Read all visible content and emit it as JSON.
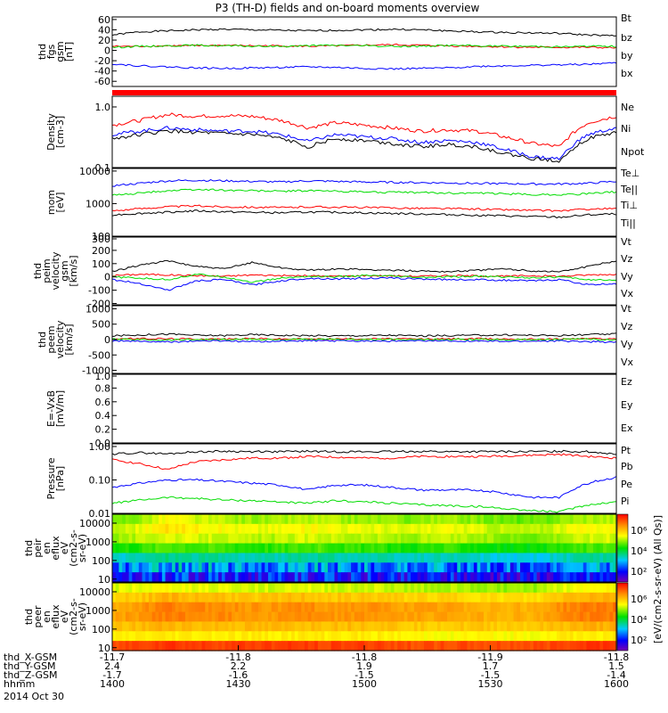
{
  "title": "P3 (TH-D) fields and on-board moments overview",
  "colors": {
    "black": "#000000",
    "red": "#ff0000",
    "green": "#00dd00",
    "blue": "#0000ff"
  },
  "chart_data": [
    {
      "type": "line",
      "ylabel": [
        "thd",
        "fgs",
        "gsm",
        "[nT]"
      ],
      "yticks": [
        "60",
        "40",
        "20",
        "0",
        "-20",
        "-40",
        "-60"
      ],
      "ylim": [
        -70,
        65
      ],
      "legend": [
        "Bt",
        "bz",
        "by",
        "bx"
      ],
      "series": [
        {
          "name": "Bt",
          "color": "black",
          "values": [
            30,
            36,
            38,
            40,
            41,
            40,
            39,
            38,
            39,
            40,
            41,
            40,
            38,
            36,
            35,
            34,
            33,
            30,
            28
          ]
        },
        {
          "name": "bz",
          "color": "red",
          "values": [
            8,
            8,
            9,
            9,
            10,
            9,
            9,
            8,
            9,
            10,
            11,
            10,
            9,
            8,
            7,
            6,
            6,
            6,
            5
          ]
        },
        {
          "name": "by",
          "color": "green",
          "values": [
            6,
            8,
            9,
            10,
            9,
            8,
            8,
            9,
            10,
            9,
            8,
            8,
            10,
            9,
            8,
            8,
            7,
            8,
            8
          ]
        },
        {
          "name": "bx",
          "color": "blue",
          "values": [
            -26,
            -30,
            -32,
            -34,
            -35,
            -34,
            -33,
            -32,
            -33,
            -35,
            -36,
            -35,
            -34,
            -31,
            -30,
            -29,
            -28,
            -27,
            -24
          ]
        }
      ]
    },
    {
      "type": "line",
      "ylabel": [
        "Density",
        "[cm-3]"
      ],
      "yscale": "log",
      "yticks": [
        "1.0",
        "0.1"
      ],
      "ylim": [
        0.1,
        1.5
      ],
      "legend": [
        "Ne",
        "Ni",
        "Npot"
      ],
      "series": [
        {
          "name": "Ne",
          "color": "red",
          "values": [
            0.5,
            0.6,
            0.75,
            0.7,
            0.72,
            0.7,
            0.6,
            0.45,
            0.55,
            0.5,
            0.45,
            0.4,
            0.42,
            0.4,
            0.32,
            0.25,
            0.22,
            0.55,
            0.7
          ]
        },
        {
          "name": "Ni",
          "color": "black",
          "values": [
            0.3,
            0.35,
            0.4,
            0.38,
            0.36,
            0.35,
            0.3,
            0.22,
            0.3,
            0.28,
            0.25,
            0.22,
            0.24,
            0.22,
            0.17,
            0.14,
            0.13,
            0.3,
            0.38
          ]
        },
        {
          "name": "Npot",
          "color": "blue",
          "values": [
            0.35,
            0.4,
            0.45,
            0.42,
            0.4,
            0.4,
            0.35,
            0.27,
            0.35,
            0.32,
            0.3,
            0.26,
            0.28,
            0.26,
            0.2,
            0.15,
            0.14,
            0.35,
            0.45
          ]
        }
      ]
    },
    {
      "type": "line",
      "ylabel": [
        "mom",
        "[eV]"
      ],
      "yscale": "log",
      "yticks": [
        "10000",
        "1000",
        "100"
      ],
      "ylim": [
        100,
        12000
      ],
      "legend": [
        "Te⊥",
        "Te||",
        "Ti⊥",
        "Ti||"
      ],
      "series": [
        {
          "name": "Te⊥",
          "color": "red",
          "values": [
            600,
            700,
            800,
            850,
            800,
            780,
            750,
            800,
            780,
            760,
            740,
            720,
            700,
            680,
            650,
            620,
            600,
            680,
            700
          ]
        },
        {
          "name": "Te||",
          "color": "black",
          "values": [
            450,
            500,
            550,
            600,
            560,
            540,
            520,
            550,
            540,
            520,
            500,
            480,
            460,
            440,
            420,
            400,
            380,
            450,
            480
          ]
        },
        {
          "name": "Ti⊥",
          "color": "blue",
          "values": [
            3500,
            4200,
            5000,
            5200,
            5000,
            4800,
            4600,
            5000,
            4800,
            4600,
            4500,
            4400,
            4300,
            4200,
            4100,
            4000,
            4000,
            4200,
            4800
          ]
        },
        {
          "name": "Ti||",
          "color": "green",
          "values": [
            1800,
            2100,
            2500,
            2700,
            2600,
            2500,
            2400,
            2500,
            2400,
            2300,
            2200,
            2200,
            2100,
            2100,
            2000,
            1900,
            1900,
            2000,
            2300
          ]
        }
      ]
    },
    {
      "type": "line",
      "ylabel": [
        "thd",
        "peim",
        "velocity",
        "gsm",
        "[km/s]"
      ],
      "yticks": [
        "300",
        "200",
        "100",
        "0",
        "-100",
        "-200"
      ],
      "ylim": [
        -210,
        300
      ],
      "legend": [
        "Vt",
        "Vz",
        "Vy",
        "Vx"
      ],
      "series": [
        {
          "name": "Vt",
          "color": "black",
          "values": [
            40,
            90,
            120,
            80,
            60,
            110,
            70,
            50,
            60,
            55,
            50,
            45,
            40,
            50,
            60,
            45,
            40,
            80,
            120
          ]
        },
        {
          "name": "Vz",
          "color": "red",
          "values": [
            10,
            20,
            15,
            10,
            5,
            15,
            10,
            8,
            5,
            10,
            8,
            5,
            10,
            8,
            5,
            10,
            5,
            15,
            20
          ]
        },
        {
          "name": "Vy",
          "color": "green",
          "values": [
            0,
            -10,
            -20,
            20,
            0,
            -40,
            -10,
            5,
            0,
            10,
            5,
            -5,
            0,
            5,
            0,
            -5,
            0,
            -20,
            -30
          ]
        },
        {
          "name": "Vx",
          "color": "blue",
          "values": [
            -20,
            -50,
            -100,
            -30,
            -20,
            -60,
            -30,
            -10,
            -15,
            -10,
            -10,
            -15,
            -20,
            -20,
            -25,
            -30,
            -20,
            -60,
            -50
          ]
        }
      ]
    },
    {
      "type": "line",
      "ylabel": [
        "thd",
        "peem",
        "velocity",
        "[km/s]"
      ],
      "yticks": [
        "1000",
        "500",
        "0",
        "-500",
        "-1000"
      ],
      "ylim": [
        -1100,
        1100
      ],
      "legend": [
        "Vt",
        "Vz",
        "Vy",
        "Vx"
      ],
      "series": [
        {
          "name": "Vt",
          "color": "black",
          "values": [
            120,
            150,
            180,
            140,
            130,
            160,
            140,
            130,
            120,
            130,
            140,
            120,
            130,
            140,
            150,
            140,
            130,
            160,
            180
          ]
        },
        {
          "name": "Vz",
          "color": "red",
          "values": [
            20,
            30,
            25,
            20,
            15,
            30,
            20,
            15,
            20,
            25,
            20,
            15,
            20,
            25,
            20,
            15,
            20,
            30,
            25
          ]
        },
        {
          "name": "Vy",
          "color": "green",
          "values": [
            10,
            0,
            -10,
            5,
            0,
            10,
            0,
            5,
            0,
            5,
            0,
            -5,
            0,
            5,
            0,
            0,
            5,
            10,
            0
          ]
        },
        {
          "name": "Vx",
          "color": "blue",
          "values": [
            -40,
            -60,
            -80,
            -50,
            -40,
            -70,
            -50,
            -40,
            -45,
            -40,
            -50,
            -45,
            -40,
            -50,
            -60,
            -50,
            -45,
            -70,
            -80
          ]
        }
      ]
    },
    {
      "type": "line",
      "ylabel": [
        "E=-VxB",
        "[mV/m]"
      ],
      "yticks": [
        "1.0",
        "0.8",
        "0.6",
        "0.4",
        "0.2",
        "0.0"
      ],
      "ylim": [
        0,
        1
      ],
      "legend": [
        "Ez",
        "Ey",
        "Ex"
      ],
      "series": []
    },
    {
      "type": "line",
      "ylabel": [
        "Pressure",
        "[nPa]"
      ],
      "yscale": "log",
      "yticks": [
        "1.00",
        "0.10",
        "0.01"
      ],
      "ylim": [
        0.01,
        1.2
      ],
      "legend": [
        "Pt",
        "Pb",
        "Pe",
        "Pi"
      ],
      "series": [
        {
          "name": "Pt",
          "color": "black",
          "values": [
            0.6,
            0.65,
            0.6,
            0.7,
            0.72,
            0.7,
            0.7,
            0.72,
            0.7,
            0.7,
            0.7,
            0.72,
            0.7,
            0.7,
            0.7,
            0.7,
            0.72,
            0.7,
            0.6
          ]
        },
        {
          "name": "Pb",
          "color": "red",
          "values": [
            0.4,
            0.3,
            0.2,
            0.35,
            0.4,
            0.45,
            0.45,
            0.5,
            0.48,
            0.45,
            0.45,
            0.5,
            0.5,
            0.5,
            0.52,
            0.55,
            0.58,
            0.5,
            0.45
          ]
        },
        {
          "name": "Pe",
          "color": "green",
          "values": [
            0.02,
            0.025,
            0.03,
            0.028,
            0.025,
            0.024,
            0.022,
            0.02,
            0.024,
            0.022,
            0.02,
            0.018,
            0.017,
            0.016,
            0.014,
            0.012,
            0.011,
            0.018,
            0.022
          ]
        },
        {
          "name": "Pi",
          "color": "blue",
          "values": [
            0.06,
            0.08,
            0.1,
            0.1,
            0.09,
            0.08,
            0.07,
            0.05,
            0.07,
            0.07,
            0.06,
            0.05,
            0.05,
            0.05,
            0.04,
            0.03,
            0.03,
            0.08,
            0.12
          ]
        }
      ]
    },
    {
      "type": "heatmap",
      "ylabel": [
        "thd",
        "peir",
        "en",
        "eflux",
        "eV",
        "(cm2-s-",
        "sr-eV)"
      ],
      "yscale": "log",
      "yticks": [
        "10000",
        "1000",
        "100",
        "10"
      ],
      "ylim": [
        7,
        30000
      ],
      "colorbar_ticks": [
        "10⁶",
        "10⁴",
        "10²"
      ],
      "rows": [
        [
          4.6,
          4.8,
          5.2,
          5.0,
          4.9,
          4.8,
          4.8,
          4.9,
          4.9,
          4.8,
          4.8,
          4.7,
          4.8,
          4.8,
          4.7,
          4.6,
          4.6,
          4.8,
          4.9
        ],
        [
          4.9,
          5.1,
          5.4,
          5.3,
          5.2,
          5.1,
          5.1,
          5.2,
          5.2,
          5.1,
          5.1,
          5.0,
          5.1,
          5.1,
          5.0,
          4.9,
          4.9,
          5.1,
          5.2
        ],
        [
          4.8,
          4.9,
          5.1,
          5.0,
          5.0,
          4.9,
          4.9,
          5.0,
          5.0,
          4.9,
          4.9,
          4.8,
          4.9,
          4.9,
          4.8,
          4.7,
          4.7,
          4.9,
          5.0
        ],
        [
          4.3,
          4.4,
          4.6,
          4.5,
          4.5,
          4.4,
          4.4,
          4.5,
          4.5,
          4.4,
          4.4,
          4.3,
          4.4,
          4.4,
          4.3,
          4.2,
          4.2,
          4.4,
          4.5
        ],
        [
          3.5,
          3.6,
          3.8,
          3.7,
          3.7,
          3.6,
          3.6,
          3.7,
          3.7,
          3.6,
          3.6,
          3.5,
          3.6,
          3.6,
          3.5,
          3.4,
          3.4,
          3.6,
          3.7
        ],
        [
          2.9,
          3.0,
          3.2,
          3.1,
          3.1,
          3.0,
          3.0,
          3.1,
          3.1,
          3.0,
          3.0,
          2.9,
          3.0,
          3.0,
          2.9,
          2.8,
          2.8,
          3.0,
          3.1
        ],
        [
          2.3,
          2.4,
          2.6,
          2.5,
          2.5,
          2.4,
          2.4,
          2.5,
          2.5,
          2.4,
          2.4,
          2.3,
          2.4,
          2.4,
          2.3,
          2.2,
          2.2,
          2.4,
          2.5
        ]
      ]
    },
    {
      "type": "heatmap",
      "ylabel": [
        "thd",
        "peer",
        "en",
        "eflux",
        "eV",
        "(cm2-s-",
        "sr-eV)"
      ],
      "yscale": "log",
      "yticks": [
        "10000",
        "1000",
        "100",
        "10"
      ],
      "ylim": [
        7,
        30000
      ],
      "colorbar_ticks": [
        "10⁶",
        "10⁴",
        "10²"
      ],
      "colorbar_label": "[eV/(cm2-s-sr-eV) (All Qs)]",
      "rows": [
        [
          5.0,
          5.1,
          5.2,
          5.1,
          5.1,
          5.0,
          5.0,
          5.1,
          5.0,
          5.0,
          5.0,
          4.9,
          4.9,
          4.9,
          4.8,
          4.8,
          4.8,
          5.1,
          5.2
        ],
        [
          5.5,
          5.6,
          5.8,
          5.7,
          5.7,
          5.6,
          5.6,
          5.7,
          5.6,
          5.6,
          5.6,
          5.5,
          5.5,
          5.5,
          5.4,
          5.4,
          5.4,
          5.7,
          5.8
        ],
        [
          5.8,
          6.0,
          6.2,
          6.1,
          6.1,
          6.0,
          6.0,
          6.1,
          6.0,
          6.0,
          6.0,
          5.9,
          5.9,
          5.9,
          5.8,
          5.8,
          5.8,
          6.1,
          6.2
        ],
        [
          5.9,
          6.0,
          6.2,
          6.1,
          6.1,
          6.0,
          6.0,
          6.1,
          6.0,
          6.0,
          6.0,
          5.9,
          5.9,
          5.9,
          5.8,
          5.8,
          5.8,
          6.1,
          6.2
        ],
        [
          5.6,
          5.7,
          5.8,
          5.7,
          5.7,
          5.7,
          5.7,
          5.7,
          5.7,
          5.7,
          5.7,
          5.6,
          5.6,
          5.6,
          5.6,
          5.6,
          5.6,
          5.7,
          5.8
        ],
        [
          5.2,
          5.3,
          5.3,
          5.3,
          5.3,
          5.3,
          5.3,
          5.3,
          5.3,
          5.3,
          5.3,
          5.2,
          5.2,
          5.2,
          5.2,
          5.2,
          5.2,
          5.3,
          5.3
        ],
        [
          6.5,
          6.6,
          6.7,
          6.6,
          6.6,
          6.6,
          6.6,
          6.6,
          6.6,
          6.6,
          6.6,
          6.5,
          6.5,
          6.5,
          6.5,
          6.5,
          6.5,
          6.6,
          6.7
        ]
      ]
    }
  ],
  "x_axis": {
    "rows": [
      {
        "label": "thd_X-GSM",
        "values": [
          "-11.7",
          "-11.8",
          "-11.8",
          "-11.9",
          "-11.8"
        ]
      },
      {
        "label": "thd_Y-GSM",
        "values": [
          "2.4",
          "2.2",
          "1.9",
          "1.7",
          "1.5"
        ]
      },
      {
        "label": "thd_Z-GSM",
        "values": [
          "-1.7",
          "-1.6",
          "-1.5",
          "-1.5",
          "-1.4"
        ]
      },
      {
        "label": "hhmm",
        "values": [
          "1400",
          "1430",
          "1500",
          "1530",
          "1600"
        ]
      }
    ],
    "date": "2014 Oct 30"
  }
}
